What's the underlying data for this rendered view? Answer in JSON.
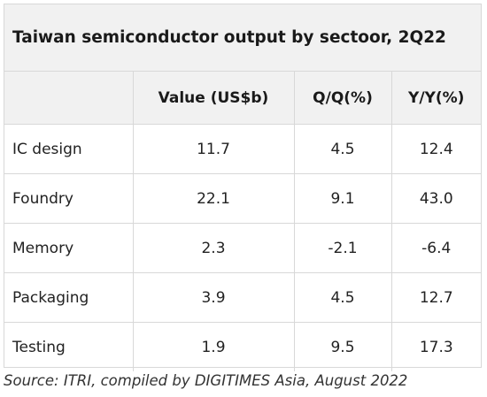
{
  "chart_data": {
    "type": "table",
    "title": "Taiwan semiconductor output by sectoor, 2Q22",
    "columns": [
      "",
      "Value (US$b)",
      "Q/Q(%)",
      "Y/Y(%)"
    ],
    "rows": [
      {
        "sector": "IC design",
        "value": "11.7",
        "qoq": "4.5",
        "yoy": "12.4"
      },
      {
        "sector": "Foundry",
        "value": "22.1",
        "qoq": "9.1",
        "yoy": "43.0"
      },
      {
        "sector": "Memory",
        "value": "2.3",
        "qoq": "-2.1",
        "yoy": "-6.4"
      },
      {
        "sector": "Packaging",
        "value": "3.9",
        "qoq": "4.5",
        "yoy": "12.7"
      },
      {
        "sector": "Testing",
        "value": "1.9",
        "qoq": "9.5",
        "yoy": "17.3"
      }
    ],
    "source": "Source: ITRI, compiled by DIGITIMES Asia, August 2022"
  }
}
